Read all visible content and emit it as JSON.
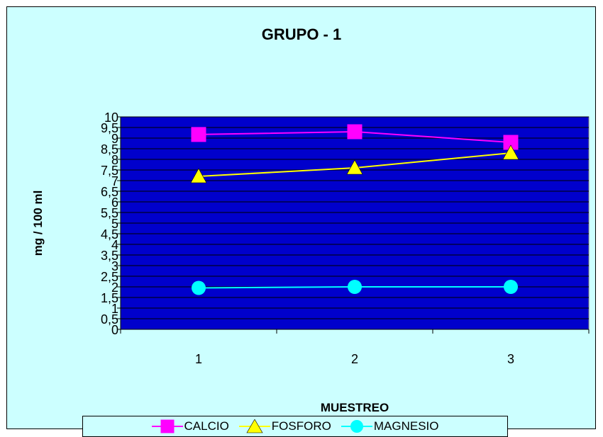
{
  "chart_data": {
    "type": "line",
    "title": "GRUPO - 1",
    "xlabel": "MUESTREO",
    "ylabel": "mg / 100 ml",
    "categories": [
      "1",
      "2",
      "3"
    ],
    "ylim": [
      0,
      10
    ],
    "y_ticks": [
      "0",
      "0,5",
      "1",
      "1,5",
      "2",
      "2,5",
      "3",
      "3,5",
      "4",
      "4,5",
      "5",
      "5,5",
      "6",
      "6,5",
      "7",
      "7,5",
      "8",
      "8,5",
      "9",
      "9,5",
      "10"
    ],
    "grid": true,
    "plot_background": "#0000cc",
    "chart_background": "#ccffff",
    "legend_position": "bottom",
    "series": [
      {
        "name": "CALCIO",
        "values": [
          9.17,
          9.3,
          8.8
        ],
        "color": "#ff00ff",
        "marker": "square"
      },
      {
        "name": "FOSFORO",
        "values": [
          7.2,
          7.6,
          8.3
        ],
        "color": "#ffff00",
        "marker": "triangle"
      },
      {
        "name": "MAGNESIO",
        "values": [
          1.95,
          2.0,
          2.0
        ],
        "color": "#00ffff",
        "marker": "circle"
      }
    ]
  }
}
